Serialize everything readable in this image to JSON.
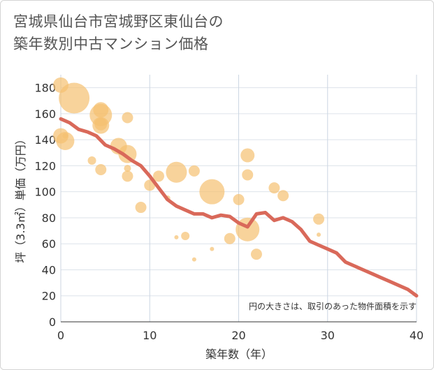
{
  "chart_data": {
    "type": "scatter",
    "title_line1": "宮城県仙台市宮城野区東仙台の",
    "title_line2": "築年数別中古マンション価格",
    "xlabel": "築年数（年）",
    "ylabel": "坪（3.3㎡）単価（万円）",
    "xlim": [
      0,
      40
    ],
    "ylim": [
      0,
      190
    ],
    "xticks": [
      0,
      10,
      20,
      30,
      40
    ],
    "yticks": [
      0,
      20,
      40,
      60,
      80,
      100,
      120,
      140,
      160,
      180
    ],
    "note": "円の大きさは、取引のあった物件面積を示す",
    "bubble_color": "#f5c070",
    "line_color": "#d9695a",
    "bubbles": [
      {
        "x": 0,
        "y": 182,
        "size": 11
      },
      {
        "x": 0,
        "y": 143,
        "size": 11
      },
      {
        "x": 0.5,
        "y": 143,
        "size": 4
      },
      {
        "x": 0.5,
        "y": 139,
        "size": 13
      },
      {
        "x": 1.5,
        "y": 172,
        "size": 22
      },
      {
        "x": 3.5,
        "y": 124,
        "size": 6
      },
      {
        "x": 4.5,
        "y": 117,
        "size": 8
      },
      {
        "x": 4.5,
        "y": 163,
        "size": 11
      },
      {
        "x": 4.5,
        "y": 159,
        "size": 16
      },
      {
        "x": 4.5,
        "y": 151,
        "size": 12
      },
      {
        "x": 4.5,
        "y": 152,
        "size": 9
      },
      {
        "x": 7.5,
        "y": 157,
        "size": 8
      },
      {
        "x": 6.5,
        "y": 135,
        "size": 12
      },
      {
        "x": 7.5,
        "y": 129,
        "size": 13
      },
      {
        "x": 7.5,
        "y": 118,
        "size": 5
      },
      {
        "x": 7.5,
        "y": 112,
        "size": 8
      },
      {
        "x": 9,
        "y": 88,
        "size": 8
      },
      {
        "x": 10,
        "y": 105,
        "size": 8
      },
      {
        "x": 11,
        "y": 112,
        "size": 8
      },
      {
        "x": 12,
        "y": 95,
        "size": 4
      },
      {
        "x": 13,
        "y": 115,
        "size": 15
      },
      {
        "x": 13,
        "y": 65,
        "size": 3
      },
      {
        "x": 14,
        "y": 66,
        "size": 6
      },
      {
        "x": 15,
        "y": 116,
        "size": 8
      },
      {
        "x": 15,
        "y": 48,
        "size": 3
      },
      {
        "x": 17,
        "y": 100,
        "size": 18
      },
      {
        "x": 17,
        "y": 56,
        "size": 3
      },
      {
        "x": 19,
        "y": 64,
        "size": 8
      },
      {
        "x": 20,
        "y": 94,
        "size": 8
      },
      {
        "x": 21,
        "y": 128,
        "size": 10
      },
      {
        "x": 21,
        "y": 113,
        "size": 8
      },
      {
        "x": 21,
        "y": 71,
        "size": 17
      },
      {
        "x": 22,
        "y": 52,
        "size": 8
      },
      {
        "x": 24,
        "y": 103,
        "size": 8
      },
      {
        "x": 25,
        "y": 97,
        "size": 8
      },
      {
        "x": 29,
        "y": 79,
        "size": 8
      },
      {
        "x": 29,
        "y": 67,
        "size": 3
      }
    ],
    "trend": {
      "x": [
        0,
        1,
        2,
        3,
        4,
        5,
        6,
        7,
        8,
        9,
        10,
        11,
        12,
        13,
        14,
        15,
        16,
        17,
        18,
        19,
        20,
        21,
        22,
        23,
        24,
        25,
        26,
        27,
        28,
        29,
        30,
        31,
        32,
        33,
        34,
        35,
        36,
        37,
        38,
        39,
        40
      ],
      "y": [
        156,
        153,
        148,
        146,
        143,
        136,
        133,
        129,
        124,
        120,
        112,
        103,
        94,
        89,
        86,
        83,
        83,
        80,
        82,
        81,
        76,
        73,
        83,
        84,
        78,
        80,
        77,
        71,
        62,
        59,
        56,
        53,
        46,
        43,
        40,
        37,
        34,
        31,
        28,
        25,
        20
      ]
    }
  }
}
